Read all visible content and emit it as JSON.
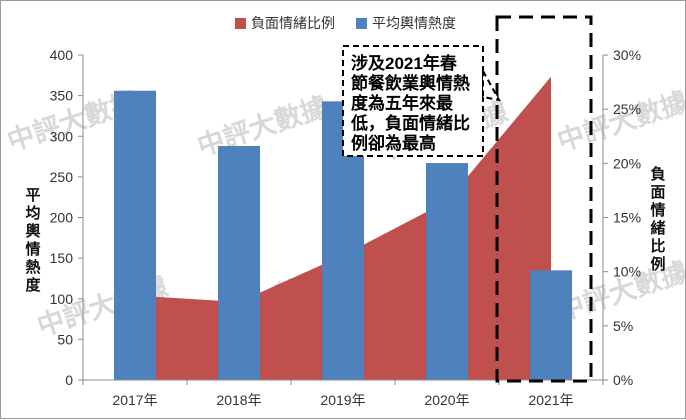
{
  "chart_data": {
    "type": "bar",
    "categories": [
      "2017年",
      "2018年",
      "2019年",
      "2020年",
      "2021年"
    ],
    "series": [
      {
        "name": "負面情緒比例",
        "type": "area",
        "axis": "right",
        "color": "#C0504D",
        "values": [
          0.078,
          0.072,
          0.115,
          0.165,
          0.28
        ]
      },
      {
        "name": "平均輿情熱度",
        "type": "bar",
        "axis": "left",
        "color": "#4F81BD",
        "values": [
          356,
          288,
          343,
          267,
          135
        ]
      }
    ],
    "y_left": {
      "label": "平均輿情熱度",
      "min": 0,
      "max": 400,
      "ticks": [
        0,
        50,
        100,
        150,
        200,
        250,
        300,
        350,
        400
      ]
    },
    "y_right": {
      "label": "負面情緒比例",
      "min": 0,
      "max": 0.3,
      "ticks": [
        "0%",
        "5%",
        "10%",
        "15%",
        "20%",
        "25%",
        "30%"
      ]
    },
    "legend_position": "top",
    "grid": false,
    "annotation": {
      "lines": [
        "涉及2021年春",
        "節餐飲業輿情熱",
        "度為五年來最",
        "低，負面情緒比",
        "例卻為最高"
      ]
    },
    "highlight": "2021年",
    "watermark": "中評大數據"
  }
}
